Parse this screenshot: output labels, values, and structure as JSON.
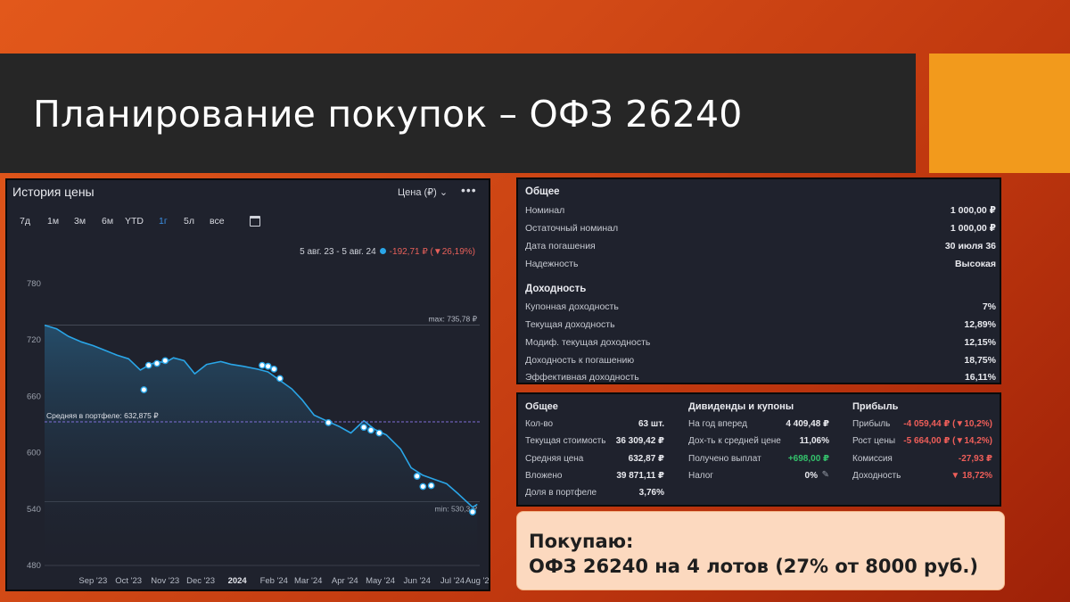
{
  "slide": {
    "title": "Планирование покупок – ОФЗ 26240"
  },
  "price_chart": {
    "title": "История цены",
    "selector_label": "Цена (₽)",
    "more_icon": "more-dots-icon",
    "periods": [
      "7д",
      "1м",
      "3м",
      "6м",
      "YTD",
      "1г",
      "5л",
      "все"
    ],
    "active_period": "1г",
    "calendar_icon": "calendar-icon",
    "range_label": "5 авг. 23 - 5 авг. 24",
    "range_change": "-192,71 ₽ (",
    "range_change_pct": "26,19%)",
    "avg_label": "Средняя в портфеле: 632,875 ₽",
    "max_label": "max: 735,78 ₽",
    "min_label": "min: 530,3 ₽",
    "colors": {
      "line": "#2aa6e8",
      "avg_line": "#7f6fd8",
      "negative": "#e8605a",
      "active": "#3b8fe3"
    }
  },
  "chart_data": {
    "type": "area",
    "y_ticks": [
      "780",
      "720",
      "660",
      "600",
      "540",
      "480"
    ],
    "ylim": [
      480,
      780
    ],
    "x_ticks": [
      "Sep '23",
      "Oct '23",
      "Nov '23",
      "Dec '23",
      "2024",
      "Feb '24",
      "Mar '24",
      "Apr '24",
      "May '24",
      "Jun '24",
      "Jul '24",
      "Aug '24"
    ],
    "x": [
      "2023-08-05",
      "2023-08-15",
      "2023-08-25",
      "2023-09-05",
      "2023-09-15",
      "2023-09-25",
      "2023-10-05",
      "2023-10-15",
      "2023-10-25",
      "2023-11-01",
      "2023-11-08",
      "2023-11-15",
      "2023-11-22",
      "2023-12-01",
      "2023-12-10",
      "2023-12-20",
      "2024-01-01",
      "2024-01-10",
      "2024-01-20",
      "2024-02-01",
      "2024-02-10",
      "2024-02-20",
      "2024-03-01",
      "2024-03-10",
      "2024-03-20",
      "2024-04-01",
      "2024-04-10",
      "2024-04-20",
      "2024-05-01",
      "2024-05-10",
      "2024-05-20",
      "2024-06-01",
      "2024-06-10",
      "2024-06-20",
      "2024-07-01",
      "2024-07-10",
      "2024-07-20",
      "2024-08-01",
      "2024-08-05"
    ],
    "y": [
      735.8,
      732,
      724,
      718,
      714,
      709,
      704,
      700,
      688,
      693,
      697,
      696,
      701,
      698,
      684,
      694,
      697,
      694,
      692,
      689,
      686,
      677,
      668,
      656,
      640,
      633,
      628,
      621,
      634,
      625,
      619,
      604,
      584,
      576,
      571,
      567,
      556,
      542,
      545
    ],
    "avg_price": 632.875,
    "buy_markers": [
      {
        "x": "2023-10-28",
        "y": 667
      },
      {
        "x": "2023-11-01",
        "y": 693
      },
      {
        "x": "2023-11-08",
        "y": 695
      },
      {
        "x": "2023-11-15",
        "y": 698
      },
      {
        "x": "2024-02-05",
        "y": 693
      },
      {
        "x": "2024-02-10",
        "y": 692
      },
      {
        "x": "2024-02-15",
        "y": 689
      },
      {
        "x": "2024-02-20",
        "y": 679
      },
      {
        "x": "2024-04-01",
        "y": 632
      },
      {
        "x": "2024-05-01",
        "y": 627
      },
      {
        "x": "2024-05-07",
        "y": 624
      },
      {
        "x": "2024-05-14",
        "y": 621
      },
      {
        "x": "2024-06-15",
        "y": 575
      },
      {
        "x": "2024-06-20",
        "y": 564
      },
      {
        "x": "2024-06-27",
        "y": 565
      },
      {
        "x": "2024-08-01",
        "y": 537
      }
    ]
  },
  "info_general": {
    "heading": "Общее",
    "rows": [
      {
        "label": "Номинал",
        "value": "1 000,00 ₽"
      },
      {
        "label": "Остаточный номинал",
        "value": "1 000,00 ₽"
      },
      {
        "label": "Дата погашения",
        "value": "30 июля 36"
      },
      {
        "label": "Надежность",
        "value": "Высокая"
      }
    ]
  },
  "info_yield": {
    "heading": "Доходность",
    "rows": [
      {
        "label": "Купонная доходность",
        "value": "7%"
      },
      {
        "label": "Текущая доходность",
        "value": "12,89%"
      },
      {
        "label": "Модиф. текущая доходность",
        "value": "12,15%"
      },
      {
        "label": "Доходность к погашению",
        "value": "18,75%"
      },
      {
        "label": "Эффективная доходность",
        "value": "16,11%"
      }
    ]
  },
  "portfolio": {
    "general": {
      "heading": "Общее",
      "rows": [
        {
          "label": "Кол-во",
          "value": "63 шт."
        },
        {
          "label": "Текущая стоимость",
          "value": "36 309,42 ₽"
        },
        {
          "label": "Средняя цена",
          "value": "632,87 ₽"
        },
        {
          "label": "Вложено",
          "value": "39 871,11 ₽"
        },
        {
          "label": "Доля в портфеле",
          "value": "3,76%"
        }
      ]
    },
    "dividends": {
      "heading": "Дивиденды и купоны",
      "rows": [
        {
          "label": "На год вперед",
          "value": "4 409,48 ₽"
        },
        {
          "label": "Дох-ть к средней цене",
          "value": "11,06%"
        },
        {
          "label": "Получено выплат",
          "value": "+698,00 ₽"
        },
        {
          "label": "Налог",
          "value": "0%"
        }
      ],
      "edit_icon": "pencil-icon"
    },
    "profit": {
      "heading": "Прибыль",
      "rows": [
        {
          "label": "Прибыль",
          "value": "-4 059,44 ₽ (",
          "pct": "10,2%)"
        },
        {
          "label": "Рост цены",
          "value": "-5 664,00 ₽ (",
          "pct": "14,2%)"
        },
        {
          "label": "Комиссия",
          "value": "-27,93 ₽"
        },
        {
          "label": "Доходность",
          "value": "",
          "pct": "18,72%"
        }
      ]
    }
  },
  "buy_note": {
    "line1": "Покупаю:",
    "line2": "ОФЗ 26240 на 4 лотов (27% от 8000 руб.)"
  }
}
